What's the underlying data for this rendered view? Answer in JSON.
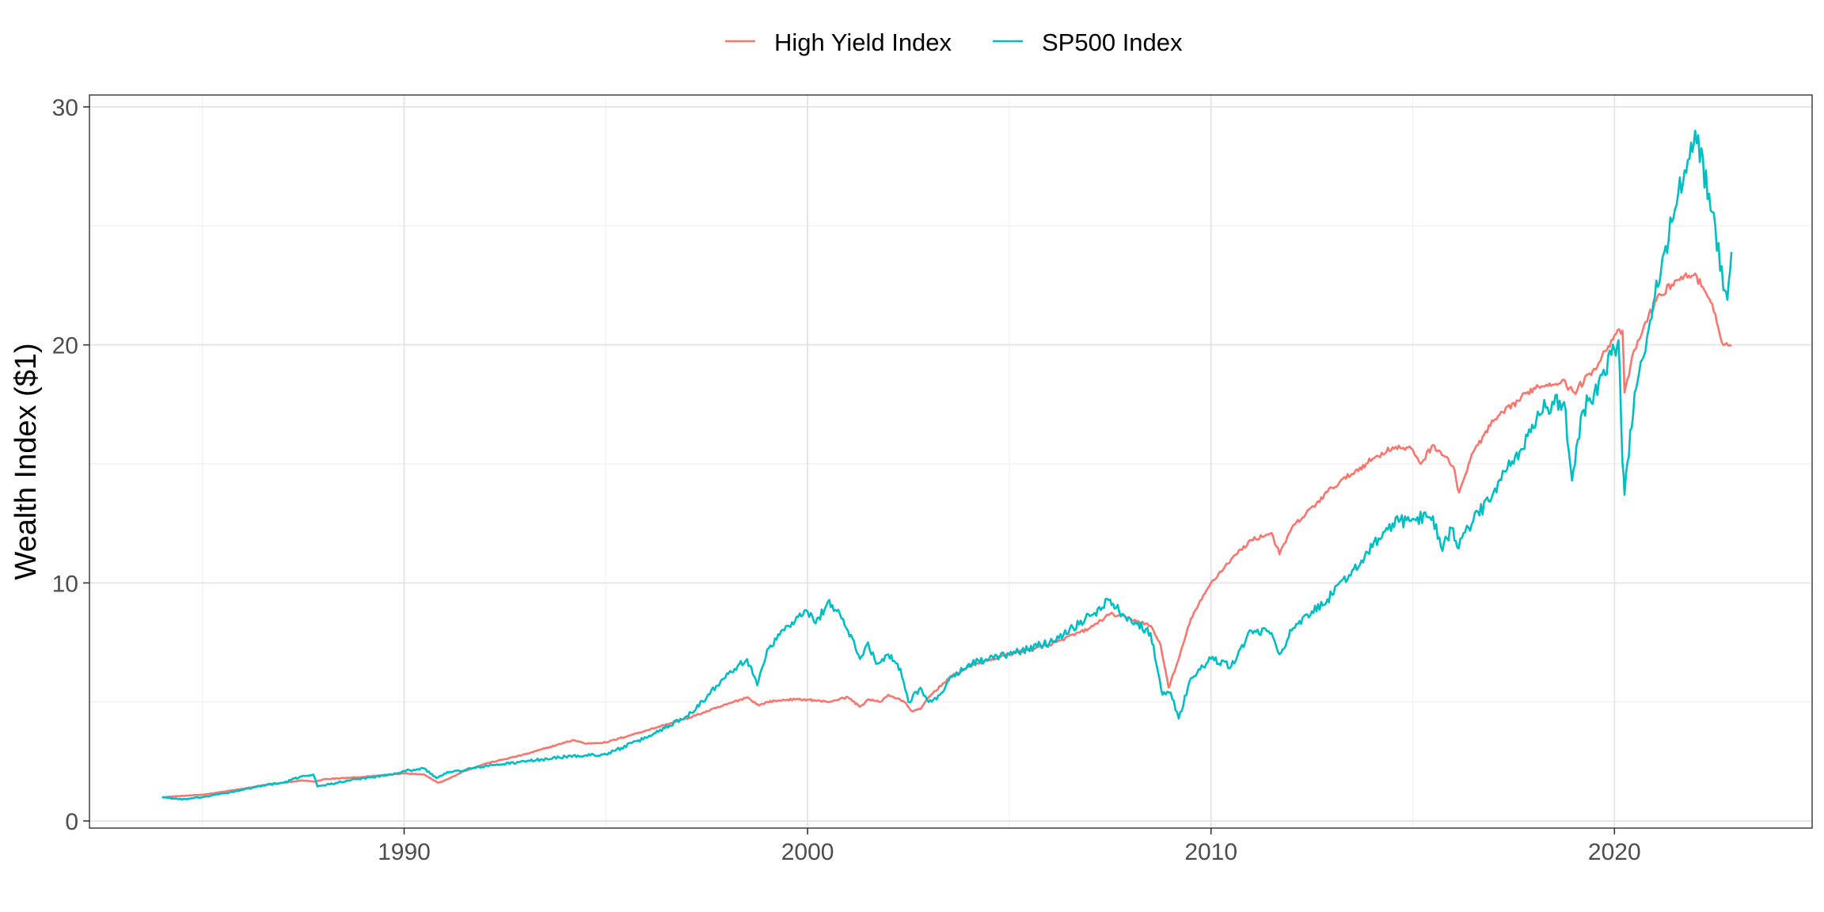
{
  "chart_data": {
    "type": "line",
    "title": "",
    "xlabel": "",
    "ylabel": "Wealth Index ($1)",
    "xlim": [
      1982.2,
      2024.9
    ],
    "ylim": [
      -0.3,
      30.5
    ],
    "x_ticks": [
      1990,
      2000,
      2010,
      2020
    ],
    "x_tick_labels": [
      "1990",
      "2000",
      "2010",
      "2020"
    ],
    "y_ticks": [
      0,
      10,
      20,
      30
    ],
    "y_tick_labels": [
      "0",
      "10",
      "20",
      "30"
    ],
    "grid": true,
    "legend_position": "top",
    "series": [
      {
        "name": "High Yield Index",
        "color": "#F8766D",
        "x": [
          1984.0,
          1985.0,
          1986.0,
          1986.5,
          1987.0,
          1987.5,
          1987.8,
          1988.0,
          1989.0,
          1990.0,
          1990.5,
          1990.85,
          1991.0,
          1991.5,
          1992.0,
          1993.0,
          1994.0,
          1994.2,
          1994.5,
          1995.0,
          1996.0,
          1997.0,
          1998.0,
          1998.5,
          1998.8,
          1999.0,
          1999.5,
          2000.0,
          2000.5,
          2001.0,
          2001.3,
          2001.5,
          2001.8,
          2002.0,
          2002.4,
          2002.6,
          2002.8,
          2003.0,
          2003.5,
          2004.0,
          2005.0,
          2006.0,
          2007.0,
          2007.5,
          2008.0,
          2008.5,
          2008.75,
          2008.95,
          2009.2,
          2009.5,
          2010.0,
          2010.5,
          2011.0,
          2011.5,
          2011.7,
          2012.0,
          2013.0,
          2014.0,
          2014.5,
          2015.0,
          2015.2,
          2015.5,
          2015.8,
          2016.0,
          2016.15,
          2016.5,
          2017.0,
          2018.0,
          2018.7,
          2019.0,
          2019.5,
          2020.0,
          2020.2,
          2020.25,
          2020.5,
          2021.0,
          2021.5,
          2022.0,
          2022.5,
          2022.7,
          2022.9
        ],
        "values": [
          1.0,
          1.1,
          1.35,
          1.5,
          1.6,
          1.7,
          1.65,
          1.75,
          1.85,
          2.0,
          1.95,
          1.6,
          1.7,
          2.1,
          2.4,
          2.8,
          3.3,
          3.4,
          3.25,
          3.3,
          3.8,
          4.3,
          4.9,
          5.2,
          4.85,
          5.0,
          5.1,
          5.1,
          5.0,
          5.2,
          4.8,
          5.1,
          5.0,
          5.3,
          5.0,
          4.6,
          4.7,
          5.2,
          6.0,
          6.5,
          7.0,
          7.4,
          8.1,
          8.7,
          8.5,
          8.2,
          7.4,
          5.6,
          6.8,
          8.5,
          10.0,
          11.0,
          11.8,
          12.1,
          11.2,
          12.3,
          14.0,
          15.2,
          15.7,
          15.6,
          15.0,
          15.8,
          15.3,
          14.9,
          13.8,
          15.5,
          16.8,
          18.2,
          18.5,
          18.0,
          19.0,
          20.4,
          20.6,
          18.0,
          19.8,
          21.8,
          22.7,
          23.0,
          21.3,
          20.0,
          20.0
        ]
      },
      {
        "name": "SP500 Index",
        "color": "#00BFC4",
        "x": [
          1984.0,
          1984.5,
          1985.0,
          1986.0,
          1986.5,
          1987.0,
          1987.5,
          1987.75,
          1987.85,
          1988.0,
          1989.0,
          1989.5,
          1990.0,
          1990.5,
          1990.8,
          1991.0,
          1992.0,
          1993.0,
          1994.0,
          1995.0,
          1996.0,
          1997.0,
          1997.5,
          1998.0,
          1998.5,
          1998.75,
          1999.0,
          1999.5,
          2000.0,
          2000.2,
          2000.5,
          2000.8,
          2001.0,
          2001.3,
          2001.5,
          2001.7,
          2002.0,
          2002.3,
          2002.5,
          2002.8,
          2003.0,
          2003.2,
          2003.5,
          2004.0,
          2004.5,
          2005.0,
          2006.0,
          2007.0,
          2007.5,
          2007.8,
          2008.0,
          2008.5,
          2008.8,
          2009.0,
          2009.2,
          2009.5,
          2010.0,
          2010.5,
          2011.0,
          2011.5,
          2011.7,
          2012.0,
          2013.0,
          2014.0,
          2014.5,
          2015.0,
          2015.5,
          2015.7,
          2016.0,
          2016.1,
          2016.5,
          2017.0,
          2018.0,
          2018.1,
          2018.5,
          2018.75,
          2018.95,
          2019.2,
          2019.5,
          2020.0,
          2020.1,
          2020.2,
          2020.25,
          2020.5,
          2021.0,
          2021.5,
          2021.9,
          2022.0,
          2022.5,
          2022.7,
          2022.8,
          2022.9
        ],
        "values": [
          1.0,
          0.9,
          1.0,
          1.3,
          1.5,
          1.6,
          1.9,
          1.95,
          1.45,
          1.5,
          1.8,
          1.9,
          2.1,
          2.2,
          1.8,
          2.0,
          2.3,
          2.5,
          2.7,
          2.8,
          3.5,
          4.4,
          5.2,
          6.2,
          6.8,
          5.7,
          7.2,
          8.2,
          8.8,
          8.3,
          9.2,
          8.7,
          8.0,
          6.8,
          7.5,
          6.6,
          7.0,
          6.4,
          5.0,
          5.6,
          5.0,
          5.1,
          5.9,
          6.6,
          6.8,
          7.0,
          7.5,
          8.6,
          9.3,
          8.7,
          8.5,
          7.9,
          5.3,
          5.4,
          4.3,
          6.0,
          6.8,
          6.5,
          8.0,
          7.9,
          7.0,
          8.0,
          9.5,
          11.5,
          12.5,
          12.7,
          12.8,
          11.5,
          12.3,
          11.5,
          12.6,
          13.8,
          16.5,
          17.2,
          17.5,
          17.6,
          14.3,
          17.2,
          18.0,
          19.8,
          20.2,
          15.0,
          13.7,
          18.0,
          22.0,
          25.7,
          28.5,
          29.0,
          25.0,
          22.3,
          21.9,
          23.9
        ]
      }
    ]
  }
}
